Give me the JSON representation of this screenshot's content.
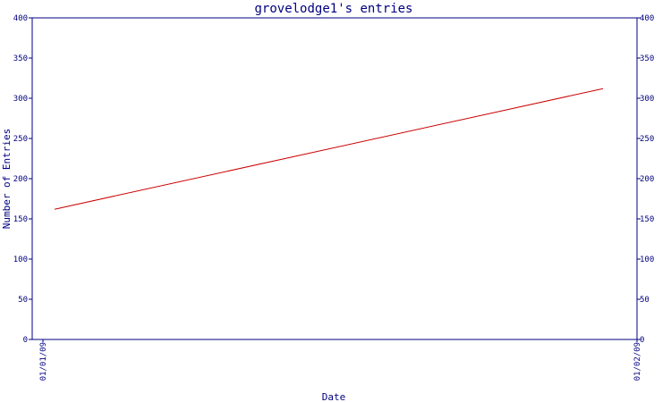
{
  "chart_data": {
    "type": "line",
    "title": "grovelodge1's entries",
    "xlabel": "Date",
    "ylabel": "Number of Entries",
    "x": [
      "01/01/09",
      "01/02/09"
    ],
    "series": [
      {
        "values": [
          162,
          312
        ]
      }
    ],
    "ylim": [
      0,
      400
    ],
    "yticks": [
      0,
      50,
      100,
      150,
      200,
      250,
      300,
      350,
      400
    ],
    "xtick_labels": [
      "01/01/09",
      "01/02/09"
    ],
    "y_axis_right_mirror": true,
    "grid": false,
    "colors": {
      "axis": "#000080",
      "line": "#cc0000",
      "background": "#ffffff"
    }
  }
}
